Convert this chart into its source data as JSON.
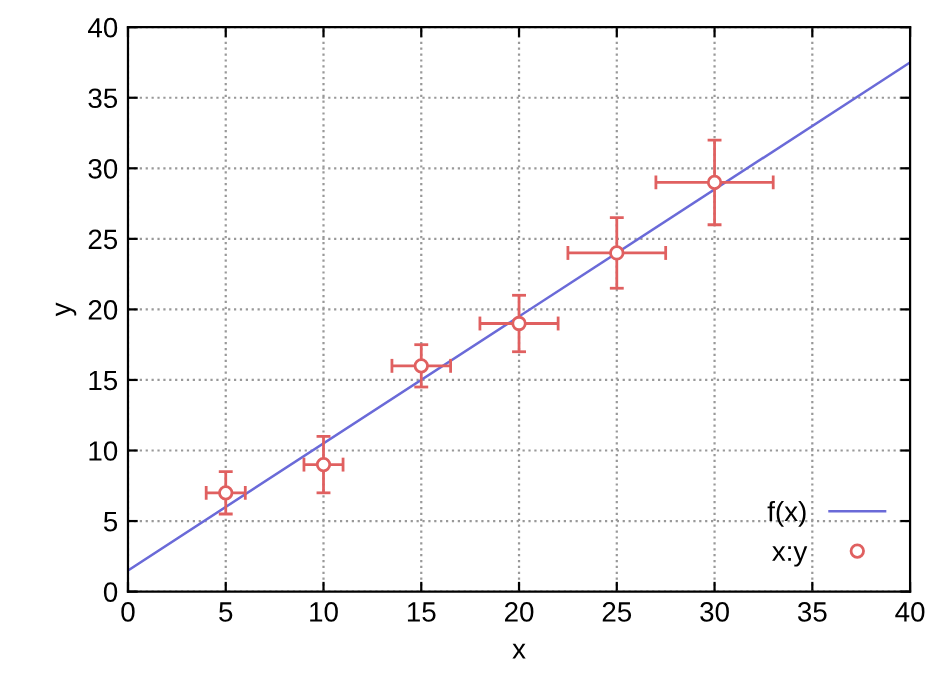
{
  "chart_data": {
    "type": "scatter",
    "xlabel": "x",
    "ylabel": "y",
    "xlim": [
      0,
      40
    ],
    "ylim": [
      0,
      40
    ],
    "xticks": [
      0,
      5,
      10,
      15,
      20,
      25,
      30,
      35,
      40
    ],
    "yticks": [
      0,
      5,
      10,
      15,
      20,
      25,
      30,
      35,
      40
    ],
    "grid": true,
    "legend": "bottom right",
    "series": [
      {
        "name": "f(x)",
        "type": "line",
        "color": "#6a6ad8",
        "x": [
          0,
          40
        ],
        "values": [
          1.5,
          37.5
        ],
        "marker": "none",
        "line_style": "solid"
      },
      {
        "name": "x:y",
        "color": "#e06060",
        "marker": "circle",
        "x": [
          5,
          10,
          15,
          20,
          25,
          30
        ],
        "values": [
          7,
          9,
          16,
          19,
          24,
          29
        ],
        "errors": [
          1.5,
          2,
          1.5,
          2,
          2.5,
          3
        ],
        "xerrors": [
          1,
          1,
          1.5,
          2,
          2.5,
          3
        ]
      }
    ]
  }
}
